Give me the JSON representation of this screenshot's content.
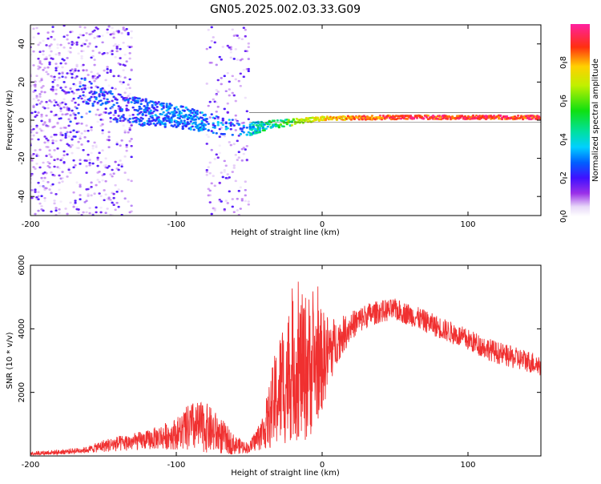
{
  "title": "GN05.2025.002.03.33.G09",
  "colors": {
    "snr_line": "#f03030",
    "axis": "#000000",
    "background": "#ffffff"
  },
  "chart_data": [
    {
      "type": "heatmap",
      "title": "GN05.2025.002.03.33.G09",
      "xlabel": "Height of straight line (km)",
      "ylabel": "Frequency (Hz)",
      "xlim": [
        -200,
        150
      ],
      "ylim": [
        -50,
        50
      ],
      "xticks": [
        -200,
        -100,
        0,
        100
      ],
      "yticks": [
        -40,
        -20,
        0,
        20,
        40
      ],
      "colorbar": {
        "label": "Normalized spectral amplitude",
        "range": [
          0,
          1
        ],
        "ticks": [
          0,
          0.2,
          0.4,
          0.6,
          0.8
        ],
        "tick_labels": [
          "0.0",
          "0.2",
          "0.4",
          "0.6",
          "0.8"
        ]
      },
      "description_of_trend": [
        {
          "x": -200,
          "center_freq": 0,
          "spread": 50,
          "peak_amp": 0.1
        },
        {
          "x": -155,
          "center_freq": 14,
          "spread": 4,
          "peak_amp": 0.35
        },
        {
          "x": -140,
          "center_freq": 6,
          "spread": 8,
          "peak_amp": 0.3
        },
        {
          "x": -100,
          "center_freq": 2,
          "spread": 6,
          "peak_amp": 0.35
        },
        {
          "x": -55,
          "center_freq": -5,
          "spread": 4,
          "peak_amp": 0.4
        },
        {
          "x": -30,
          "center_freq": -2,
          "spread": 2,
          "peak_amp": 0.6
        },
        {
          "x": 0,
          "center_freq": 1,
          "spread": 1,
          "peak_amp": 0.8
        },
        {
          "x": 50,
          "center_freq": 1.5,
          "spread": 1,
          "peak_amp": 0.95
        },
        {
          "x": 150,
          "center_freq": 1.5,
          "spread": 1,
          "peak_amp": 0.95
        }
      ]
    },
    {
      "type": "line",
      "xlabel": "Height of straight line (km)",
      "ylabel": "SNR (10 * v/v)",
      "xlim": [
        -200,
        150
      ],
      "ylim": [
        0,
        6000
      ],
      "xticks": [
        -200,
        -100,
        0,
        100
      ],
      "yticks": [
        2000,
        4000,
        6000
      ],
      "series": [
        {
          "name": "SNR",
          "envelope": {
            "x": [
              -200,
              -180,
              -160,
              -150,
              -140,
              -120,
              -100,
              -90,
              -80,
              -70,
              -60,
              -50,
              -40,
              -30,
              -20,
              -10,
              0,
              10,
              20,
              30,
              40,
              50,
              60,
              70,
              80,
              90,
              100,
              110,
              120,
              130,
              140,
              150
            ],
            "mean": [
              80,
              120,
              200,
              320,
              380,
              500,
              700,
              900,
              900,
              650,
              350,
              250,
              800,
              2000,
              2700,
              2800,
              3000,
              3600,
              4100,
              4400,
              4550,
              4600,
              4450,
              4250,
              4050,
              3850,
              3650,
              3450,
              3250,
              3100,
              3000,
              2850
            ],
            "noise": [
              60,
              80,
              100,
              200,
              250,
              300,
              500,
              800,
              800,
              600,
              300,
              150,
              600,
              1800,
              2200,
              2400,
              1600,
              700,
              450,
              400,
              350,
              350,
              350,
              350,
              350,
              350,
              350,
              350,
              350,
              350,
              350,
              350
            ]
          }
        }
      ]
    }
  ]
}
